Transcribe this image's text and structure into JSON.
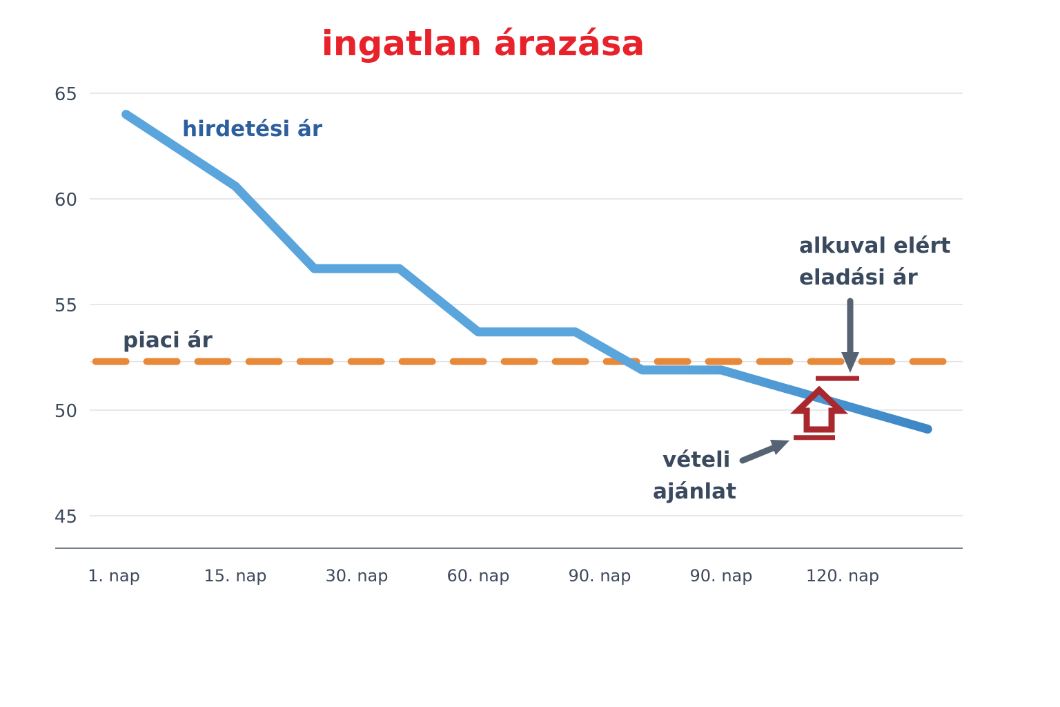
{
  "colors": {
    "title": "#e8222a",
    "listing": "#5aa5dc",
    "listing_end": "#3d86c6",
    "listing_label": "#2d5f9e",
    "market": "#e8893a",
    "annotation": "#3a4a5e",
    "arrow": "#566373",
    "offer": "#a8282d",
    "grid": "#dde1e8",
    "axis": "#4a5566"
  },
  "chart_data": {
    "type": "line",
    "title": "ingatlan árazása",
    "categories": [
      "1. nap",
      "15. nap",
      "30. nap",
      "60. nap",
      "90. nap",
      "90. nap",
      "120. nap"
    ],
    "yticks": [
      45,
      50,
      55,
      60,
      65
    ],
    "ylim": [
      45,
      65
    ],
    "grid": true,
    "series": [
      {
        "name": "hirdetési ár",
        "x": [
          0.1,
          1.0,
          1.65,
          2.35,
          3.0,
          3.8,
          4.35,
          4.95,
          5.0,
          6.7
        ],
        "y": [
          64,
          60.6,
          56.7,
          56.7,
          53.7,
          53.7,
          51.9,
          51.9,
          51.9,
          49.1
        ]
      },
      {
        "name": "piaci ár",
        "x": [
          -0.15,
          6.9
        ],
        "y": [
          52.3,
          52.3
        ]
      }
    ],
    "annotations": {
      "offer": {
        "label": [
          "vételi",
          "ajánlat"
        ],
        "value": 48.7
      },
      "sale": {
        "label": [
          "alkuval elért",
          "eladási ár"
        ],
        "value": 51.5
      }
    }
  }
}
